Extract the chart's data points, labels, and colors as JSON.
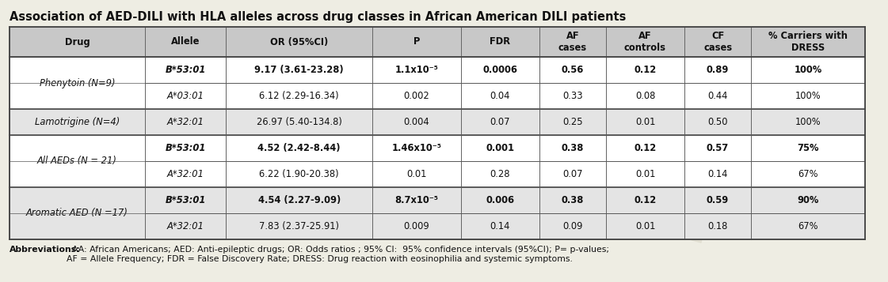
{
  "title": "Association of AED-DILI with HLA alleles across drug classes in African American DILI patients",
  "bg_color": "#eeede3",
  "headers": [
    "Drug",
    "Allele",
    "OR (95%CI)",
    "P",
    "FDR",
    "AF\ncases",
    "AF\ncontrols",
    "CF\ncases",
    "% Carriers with\nDRESS"
  ],
  "col_widths_pts": [
    125,
    75,
    135,
    82,
    72,
    62,
    72,
    62,
    105
  ],
  "header_bg": "#c8c8c8",
  "group_colors": [
    "#ffffff",
    "#e4e4e4",
    "#ffffff",
    "#e4e4e4"
  ],
  "groups": [
    {
      "label": "Phenytoin (N=9)",
      "rows": [
        0,
        1
      ]
    },
    {
      "label": "Lamotrigine (N=4)",
      "rows": [
        2
      ]
    },
    {
      "label": "All AEDs (N = 21)",
      "rows": [
        3,
        4
      ]
    },
    {
      "label": "Aromatic AED (N =17)",
      "rows": [
        5,
        6
      ]
    }
  ],
  "rows": [
    {
      "allele": "B*53:01",
      "or": "9.17 (3.61-23.28)",
      "p": "1.1x10⁻⁵",
      "fdr": "0.0006",
      "af_cases": "0.56",
      "af_controls": "0.12",
      "cf_cases": "0.89",
      "carriers": "100%",
      "bold": true
    },
    {
      "allele": "A*03:01",
      "or": "6.12 (2.29-16.34)",
      "p": "0.002",
      "fdr": "0.04",
      "af_cases": "0.33",
      "af_controls": "0.08",
      "cf_cases": "0.44",
      "carriers": "100%",
      "bold": false
    },
    {
      "allele": "A*32:01",
      "or": "26.97 (5.40-134.8)",
      "p": "0.004",
      "fdr": "0.07",
      "af_cases": "0.25",
      "af_controls": "0.01",
      "cf_cases": "0.50",
      "carriers": "100%",
      "bold": false
    },
    {
      "allele": "B*53:01",
      "or": "4.52 (2.42-8.44)",
      "p": "1.46x10⁻⁵",
      "fdr": "0.001",
      "af_cases": "0.38",
      "af_controls": "0.12",
      "cf_cases": "0.57",
      "carriers": "75%",
      "bold": true
    },
    {
      "allele": "A*32:01",
      "or": "6.22 (1.90-20.38)",
      "p": "0.01",
      "fdr": "0.28",
      "af_cases": "0.07",
      "af_controls": "0.01",
      "cf_cases": "0.14",
      "carriers": "67%",
      "bold": false
    },
    {
      "allele": "B*53:01",
      "or": "4.54 (2.27-9.09)",
      "p": "8.7x10⁻⁵",
      "fdr": "0.006",
      "af_cases": "0.38",
      "af_controls": "0.12",
      "cf_cases": "0.59",
      "carriers": "90%",
      "bold": true
    },
    {
      "allele": "A*32:01",
      "or": "7.83 (2.37-25.91)",
      "p": "0.009",
      "fdr": "0.14",
      "af_cases": "0.09",
      "af_controls": "0.01",
      "cf_cases": "0.18",
      "carriers": "67%",
      "bold": false
    }
  ],
  "abbreviations_bold": "Abbreviations:",
  "abbreviations_rest": "  AA: African Americans; AED: Anti-epileptic drugs; OR: Odds ratios ; 95% CI:  95% confidence intervals (95%CI); P= p-values;\nAF = Allele Frequency; FDR = False Discovery Rate; DRESS: Drug reaction with eosinophilia and systemic symptoms.",
  "watermark_lines": [
    "DILI",
    "DILI",
    "DILI"
  ],
  "watermark_color": "#d8d5c5",
  "watermark_alpha": 0.6
}
